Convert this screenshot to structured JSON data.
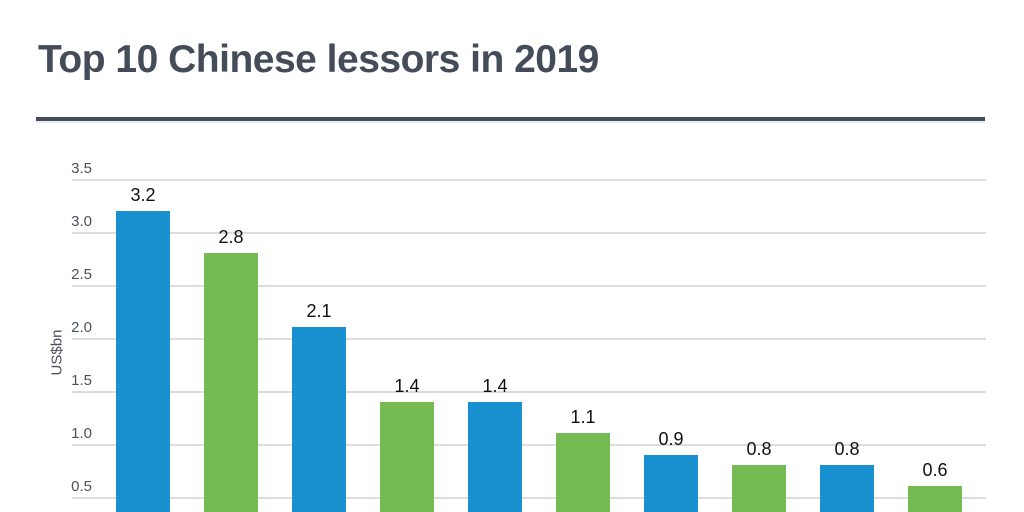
{
  "header": {
    "title": "Top 10 Chinese lessors in 2019"
  },
  "chart_data": {
    "type": "bar",
    "title": "Top 10 Chinese lessors in 2019",
    "xlabel": "",
    "ylabel": "US$bn",
    "ylim": [
      0,
      3.5
    ],
    "yticks": [
      3.5,
      3.0,
      2.5,
      2.0,
      1.5,
      1.0,
      0.5
    ],
    "ytick_labels": [
      "3.5",
      "3.0",
      "2.5",
      "2.0",
      "1.5",
      "1.0",
      "0.5"
    ],
    "grid": true,
    "legend": false,
    "note": "x-axis category labels are cropped out of view at the bottom of the screenshot",
    "values": [
      3.2,
      2.8,
      2.1,
      1.4,
      1.4,
      1.1,
      0.9,
      0.8,
      0.8,
      0.6
    ],
    "bar_value_labels": [
      "3.2",
      "2.8",
      "2.1",
      "1.4",
      "1.4",
      "1.1",
      "0.9",
      "0.8",
      "0.8",
      "0.6"
    ],
    "bar_colors": [
      "#1991d0",
      "#75bb52",
      "#1991d0",
      "#75bb52",
      "#1991d0",
      "#75bb52",
      "#1991d0",
      "#75bb52",
      "#1991d0",
      "#75bb52"
    ],
    "colors": {
      "bar_blue": "#1991d0",
      "bar_green": "#75bb52",
      "title_and_divider": "#454c59",
      "axis_text": "#4b515c",
      "gridline": "#dddddd",
      "data_label": "#111111"
    }
  }
}
